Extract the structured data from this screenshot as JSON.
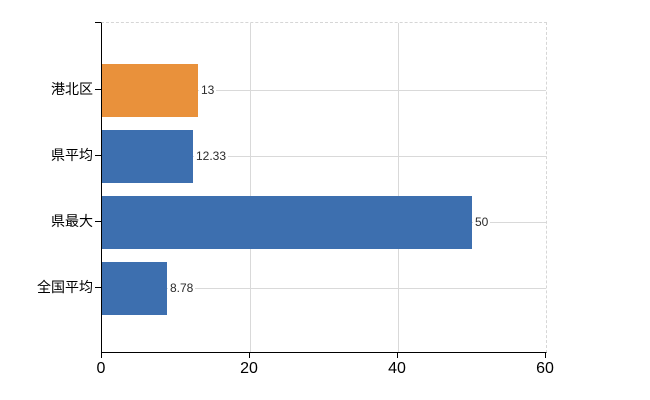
{
  "colors": {
    "bar_blue": "#3D6FAF",
    "bar_orange": "#E9913B",
    "gridline": "#D9D9D9",
    "axis": "#000000",
    "background": "#FFFFFF",
    "text": "#000000"
  },
  "chart_data": {
    "type": "bar",
    "orientation": "horizontal",
    "title": "",
    "categories": [
      "港北区",
      "県平均",
      "県最大",
      "全国平均"
    ],
    "values": [
      13,
      12.33,
      50,
      8.78
    ],
    "value_labels": [
      "13",
      "12.33",
      "50",
      "8.78"
    ],
    "bar_colors": [
      "#E9913B",
      "#3D6FAF",
      "#3D6FAF",
      "#3D6FAF"
    ],
    "xlabel": "",
    "ylabel": "",
    "xlim": [
      0,
      60
    ],
    "x_ticks": [
      "0",
      "20",
      "40",
      "60"
    ],
    "x_tick_values": [
      0,
      20,
      40,
      60
    ],
    "grid": true,
    "legend": false
  }
}
